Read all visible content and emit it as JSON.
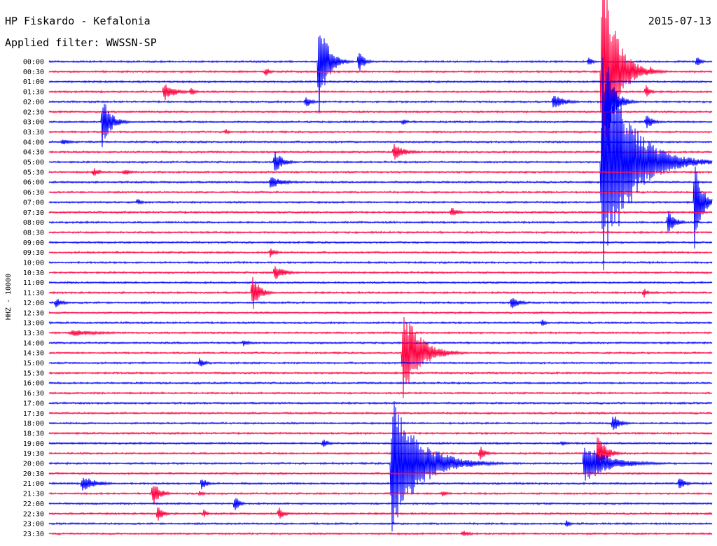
{
  "chart_data": {
    "type": "line",
    "subtype": "helicorder",
    "title": "HP Fiskardo - Kefalonia",
    "date": "2015-07-13",
    "subtitle": "Applied filter: WWSSN-SP",
    "ylabel": "HHZ - 10000",
    "row_labels": [
      "00:00",
      "00:30",
      "01:00",
      "01:30",
      "02:00",
      "02:30",
      "03:00",
      "03:30",
      "04:00",
      "04:30",
      "05:00",
      "05:30",
      "06:00",
      "06:30",
      "07:00",
      "07:30",
      "08:00",
      "08:30",
      "09:00",
      "09:30",
      "10:00",
      "10:30",
      "11:00",
      "11:30",
      "12:00",
      "12:30",
      "13:00",
      "13:30",
      "14:00",
      "14:30",
      "15:00",
      "15:30",
      "16:00",
      "16:30",
      "17:00",
      "17:30",
      "18:00",
      "18:30",
      "19:00",
      "19:30",
      "20:00",
      "20:30",
      "21:00",
      "21:30",
      "22:00",
      "22:30",
      "23:00",
      "23:30"
    ],
    "trace_colors": [
      "#0000ff",
      "#ff0040"
    ],
    "events": [
      {
        "row": 0,
        "minute": 12.2,
        "amp": 85,
        "dur": 0.6
      },
      {
        "row": 0,
        "minute": 14.0,
        "amp": 18,
        "dur": 0.4
      },
      {
        "row": 0,
        "minute": 24.4,
        "amp": 9,
        "dur": 0.3
      },
      {
        "row": 0,
        "minute": 29.3,
        "amp": 9,
        "dur": 0.3
      },
      {
        "row": 1,
        "minute": 9.8,
        "amp": 8,
        "dur": 0.3
      },
      {
        "row": 1,
        "minute": 25.0,
        "amp": 170,
        "dur": 1.0
      },
      {
        "row": 1,
        "minute": 27.2,
        "amp": 8,
        "dur": 0.3
      },
      {
        "row": 3,
        "minute": 5.2,
        "amp": 14,
        "dur": 0.8
      },
      {
        "row": 3,
        "minute": 6.4,
        "amp": 8,
        "dur": 0.3
      },
      {
        "row": 3,
        "minute": 27.0,
        "amp": 12,
        "dur": 0.3
      },
      {
        "row": 4,
        "minute": 11.6,
        "amp": 10,
        "dur": 0.4
      },
      {
        "row": 4,
        "minute": 22.8,
        "amp": 12,
        "dur": 0.8
      },
      {
        "row": 4,
        "minute": 25.2,
        "amp": 60,
        "dur": 0.6
      },
      {
        "row": 6,
        "minute": 2.4,
        "amp": 40,
        "dur": 0.6
      },
      {
        "row": 6,
        "minute": 16.0,
        "amp": 6,
        "dur": 0.3
      },
      {
        "row": 6,
        "minute": 27.0,
        "amp": 12,
        "dur": 0.5
      },
      {
        "row": 7,
        "minute": 8.0,
        "amp": 5,
        "dur": 0.3
      },
      {
        "row": 8,
        "minute": 0.6,
        "amp": 5,
        "dur": 0.6
      },
      {
        "row": 9,
        "minute": 15.6,
        "amp": 12,
        "dur": 0.8
      },
      {
        "row": 10,
        "minute": 10.2,
        "amp": 18,
        "dur": 0.6
      },
      {
        "row": 10,
        "minute": 25.0,
        "amp": 180,
        "dur": 2.0
      },
      {
        "row": 11,
        "minute": 2.0,
        "amp": 8,
        "dur": 0.4
      },
      {
        "row": 11,
        "minute": 3.4,
        "amp": 6,
        "dur": 0.5
      },
      {
        "row": 12,
        "minute": 10.0,
        "amp": 10,
        "dur": 0.9
      },
      {
        "row": 14,
        "minute": 4.0,
        "amp": 6,
        "dur": 0.3
      },
      {
        "row": 14,
        "minute": 29.2,
        "amp": 70,
        "dur": 0.5
      },
      {
        "row": 15,
        "minute": 18.2,
        "amp": 8,
        "dur": 0.5
      },
      {
        "row": 16,
        "minute": 28.0,
        "amp": 20,
        "dur": 0.5
      },
      {
        "row": 19,
        "minute": 10.0,
        "amp": 8,
        "dur": 0.4
      },
      {
        "row": 21,
        "minute": 10.2,
        "amp": 12,
        "dur": 0.7
      },
      {
        "row": 23,
        "minute": 9.2,
        "amp": 30,
        "dur": 0.5
      },
      {
        "row": 23,
        "minute": 26.9,
        "amp": 8,
        "dur": 0.3
      },
      {
        "row": 24,
        "minute": 0.3,
        "amp": 8,
        "dur": 0.5
      },
      {
        "row": 24,
        "minute": 20.9,
        "amp": 10,
        "dur": 0.6
      },
      {
        "row": 26,
        "minute": 22.3,
        "amp": 6,
        "dur": 0.3
      },
      {
        "row": 27,
        "minute": 1.0,
        "amp": 5,
        "dur": 2.2
      },
      {
        "row": 28,
        "minute": 8.8,
        "amp": 6,
        "dur": 0.4
      },
      {
        "row": 29,
        "minute": 16.0,
        "amp": 70,
        "dur": 1.2
      },
      {
        "row": 30,
        "minute": 6.8,
        "amp": 8,
        "dur": 0.4
      },
      {
        "row": 36,
        "minute": 25.5,
        "amp": 15,
        "dur": 0.5
      },
      {
        "row": 38,
        "minute": 12.4,
        "amp": 8,
        "dur": 0.4
      },
      {
        "row": 38,
        "minute": 23.2,
        "amp": 4,
        "dur": 0.4
      },
      {
        "row": 39,
        "minute": 19.5,
        "amp": 12,
        "dur": 0.4
      },
      {
        "row": 39,
        "minute": 24.8,
        "amp": 30,
        "dur": 0.6
      },
      {
        "row": 40,
        "minute": 15.5,
        "amp": 100,
        "dur": 2.0
      },
      {
        "row": 40,
        "minute": 24.2,
        "amp": 30,
        "dur": 1.8
      },
      {
        "row": 42,
        "minute": 1.5,
        "amp": 12,
        "dur": 1.0
      },
      {
        "row": 42,
        "minute": 6.9,
        "amp": 10,
        "dur": 0.4
      },
      {
        "row": 42,
        "minute": 28.5,
        "amp": 12,
        "dur": 0.4
      },
      {
        "row": 43,
        "minute": 4.7,
        "amp": 20,
        "dur": 0.5
      },
      {
        "row": 43,
        "minute": 6.8,
        "amp": 6,
        "dur": 0.3
      },
      {
        "row": 43,
        "minute": 17.8,
        "amp": 6,
        "dur": 0.3
      },
      {
        "row": 44,
        "minute": 8.4,
        "amp": 14,
        "dur": 0.3
      },
      {
        "row": 45,
        "minute": 4.9,
        "amp": 14,
        "dur": 0.4
      },
      {
        "row": 45,
        "minute": 7.0,
        "amp": 6,
        "dur": 0.3
      },
      {
        "row": 45,
        "minute": 10.4,
        "amp": 10,
        "dur": 0.4
      },
      {
        "row": 46,
        "minute": 23.4,
        "amp": 6,
        "dur": 0.3
      },
      {
        "row": 47,
        "minute": 18.7,
        "amp": 6,
        "dur": 0.5
      }
    ]
  }
}
